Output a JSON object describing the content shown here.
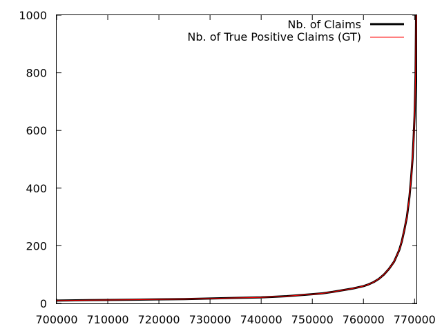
{
  "chart_data": {
    "type": "line",
    "title": "",
    "xlabel": "",
    "ylabel": "",
    "xlim": [
      700000,
      770500
    ],
    "ylim": [
      0,
      1000
    ],
    "x_ticks": [
      "700000",
      "710000",
      "720000",
      "730000",
      "740000",
      "750000",
      "760000",
      "770000"
    ],
    "x_tick_values": [
      700000,
      710000,
      720000,
      730000,
      740000,
      750000,
      760000,
      770000
    ],
    "y_ticks": [
      "0",
      "200",
      "400",
      "600",
      "800",
      "1000"
    ],
    "y_tick_values": [
      0,
      200,
      400,
      600,
      800,
      1000
    ],
    "grid": false,
    "legend_position": "top-right",
    "series": [
      {
        "name": "Nb. of Claims",
        "color": "#000000",
        "x": [
          700000,
          705000,
          710000,
          715000,
          720000,
          725000,
          730000,
          735000,
          740000,
          745000,
          750000,
          752000,
          754000,
          756000,
          758000,
          760000,
          761000,
          762000,
          763000,
          764000,
          765000,
          766000,
          767000,
          767500,
          768000,
          768500,
          769000,
          769300,
          769600,
          769800,
          770000,
          770100,
          770200,
          770250,
          770300
        ],
        "y": [
          10,
          11,
          12,
          13,
          14,
          15,
          17,
          19,
          21,
          25,
          32,
          35,
          40,
          46,
          52,
          60,
          66,
          74,
          85,
          100,
          120,
          145,
          185,
          215,
          255,
          300,
          370,
          430,
          500,
          570,
          650,
          720,
          800,
          900,
          1000
        ]
      },
      {
        "name": "Nb. of True Positive Claims (GT)",
        "color": "#ff0000",
        "x": [
          700000,
          705000,
          710000,
          715000,
          720000,
          725000,
          730000,
          735000,
          740000,
          745000,
          750000,
          752000,
          754000,
          756000,
          758000,
          760000,
          761000,
          762000,
          763000,
          764000,
          765000,
          766000,
          767000,
          767500,
          768000,
          768500,
          769000,
          769300,
          769600,
          769800,
          770000,
          770100,
          770200,
          770250,
          770300
        ],
        "y": [
          10,
          11,
          12,
          13,
          14,
          15,
          17,
          19,
          21,
          25,
          32,
          35,
          40,
          46,
          52,
          60,
          66,
          74,
          85,
          100,
          120,
          145,
          185,
          215,
          255,
          300,
          370,
          430,
          500,
          570,
          650,
          720,
          800,
          900,
          1000
        ]
      }
    ]
  }
}
